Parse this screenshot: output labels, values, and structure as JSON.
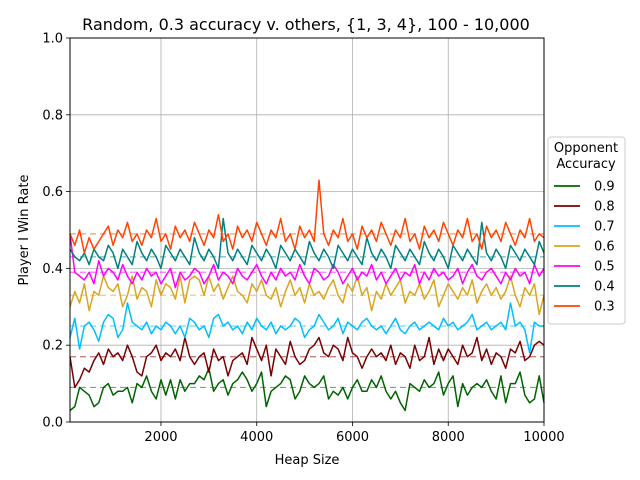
{
  "chart_data": {
    "type": "line",
    "title": "Random, 0.3 accuracy v. others, {1, 3, 4}, 100 - 10,000",
    "xlabel": "Heap Size",
    "ylabel": "Player I Win Rate",
    "xlim": [
      100,
      10000
    ],
    "ylim": [
      0,
      1
    ],
    "xticks": [
      2000,
      4000,
      6000,
      8000,
      10000
    ],
    "yticks": [
      0.0,
      0.2,
      0.4,
      0.6,
      0.8,
      1.0
    ],
    "xtick_labels": [
      "2000",
      "4000",
      "6000",
      "8000",
      "10000"
    ],
    "ytick_labels": [
      "0.0",
      "0.2",
      "0.4",
      "0.6",
      "0.8",
      "1.0"
    ],
    "grid": true,
    "legend": {
      "title_line1": "Opponent",
      "title_line2": "Accuracy",
      "placement": "outside-right"
    },
    "x": {
      "start": 100,
      "step": 100,
      "count": 100
    },
    "series": [
      {
        "name": "0.9",
        "color": "#006400",
        "mean": 0.09,
        "values": [
          0.03,
          0.04,
          0.09,
          0.08,
          0.07,
          0.04,
          0.05,
          0.09,
          0.1,
          0.07,
          0.08,
          0.08,
          0.09,
          0.05,
          0.1,
          0.09,
          0.12,
          0.08,
          0.06,
          0.11,
          0.07,
          0.11,
          0.06,
          0.11,
          0.08,
          0.1,
          0.1,
          0.12,
          0.11,
          0.14,
          0.08,
          0.1,
          0.11,
          0.07,
          0.1,
          0.11,
          0.13,
          0.11,
          0.08,
          0.1,
          0.13,
          0.04,
          0.08,
          0.09,
          0.1,
          0.12,
          0.11,
          0.06,
          0.08,
          0.12,
          0.1,
          0.09,
          0.1,
          0.12,
          0.06,
          0.08,
          0.07,
          0.09,
          0.06,
          0.09,
          0.11,
          0.08,
          0.08,
          0.11,
          0.09,
          0.12,
          0.08,
          0.06,
          0.08,
          0.05,
          0.03,
          0.1,
          0.09,
          0.08,
          0.11,
          0.09,
          0.1,
          0.13,
          0.07,
          0.1,
          0.12,
          0.04,
          0.1,
          0.07,
          0.09,
          0.1,
          0.09,
          0.11,
          0.08,
          0.06,
          0.12,
          0.05,
          0.1,
          0.1,
          0.13,
          0.07,
          0.05,
          0.06,
          0.12,
          0.05
        ],
        "_note": null
      },
      {
        "name": "0.8",
        "color": "#7b0000",
        "mean": 0.17,
        "values": [
          0.17,
          0.09,
          0.11,
          0.14,
          0.13,
          0.16,
          0.18,
          0.15,
          0.19,
          0.17,
          0.18,
          0.16,
          0.2,
          0.17,
          0.13,
          0.12,
          0.17,
          0.18,
          0.2,
          0.16,
          0.18,
          0.17,
          0.19,
          0.16,
          0.22,
          0.17,
          0.15,
          0.17,
          0.18,
          0.13,
          0.19,
          0.16,
          0.17,
          0.12,
          0.16,
          0.17,
          0.18,
          0.15,
          0.22,
          0.19,
          0.16,
          0.2,
          0.12,
          0.19,
          0.17,
          0.15,
          0.21,
          0.17,
          0.15,
          0.16,
          0.19,
          0.2,
          0.22,
          0.18,
          0.17,
          0.2,
          0.19,
          0.16,
          0.22,
          0.18,
          0.17,
          0.14,
          0.17,
          0.19,
          0.17,
          0.18,
          0.16,
          0.2,
          0.15,
          0.18,
          0.17,
          0.14,
          0.2,
          0.16,
          0.17,
          0.22,
          0.15,
          0.19,
          0.16,
          0.19,
          0.17,
          0.15,
          0.2,
          0.17,
          0.18,
          0.22,
          0.16,
          0.19,
          0.15,
          0.18,
          0.17,
          0.14,
          0.19,
          0.18,
          0.21,
          0.16,
          0.17,
          0.2,
          0.21,
          0.2
        ],
        "_note": null
      },
      {
        "name": "0.7",
        "color": "#00bfff",
        "mean": 0.25,
        "values": [
          0.22,
          0.27,
          0.19,
          0.25,
          0.26,
          0.24,
          0.21,
          0.26,
          0.28,
          0.27,
          0.22,
          0.24,
          0.31,
          0.26,
          0.25,
          0.24,
          0.26,
          0.23,
          0.25,
          0.24,
          0.26,
          0.25,
          0.23,
          0.25,
          0.22,
          0.27,
          0.26,
          0.24,
          0.25,
          0.22,
          0.27,
          0.28,
          0.25,
          0.26,
          0.24,
          0.25,
          0.23,
          0.26,
          0.24,
          0.27,
          0.25,
          0.24,
          0.26,
          0.23,
          0.25,
          0.24,
          0.25,
          0.27,
          0.26,
          0.22,
          0.24,
          0.25,
          0.28,
          0.26,
          0.24,
          0.25,
          0.27,
          0.23,
          0.26,
          0.25,
          0.24,
          0.26,
          0.27,
          0.25,
          0.24,
          0.25,
          0.23,
          0.25,
          0.27,
          0.24,
          0.23,
          0.25,
          0.26,
          0.24,
          0.25,
          0.26,
          0.25,
          0.24,
          0.27,
          0.25,
          0.26,
          0.24,
          0.25,
          0.26,
          0.28,
          0.24,
          0.25,
          0.26,
          0.24,
          0.25,
          0.26,
          0.24,
          0.31,
          0.25,
          0.26,
          0.24,
          0.18,
          0.26,
          0.25,
          0.25
        ],
        "_note": null
      },
      {
        "name": "0.6",
        "color": "#daa520",
        "mean": 0.33,
        "values": [
          0.3,
          0.34,
          0.31,
          0.36,
          0.29,
          0.34,
          0.33,
          0.38,
          0.35,
          0.34,
          0.36,
          0.3,
          0.33,
          0.38,
          0.32,
          0.35,
          0.34,
          0.3,
          0.37,
          0.33,
          0.36,
          0.35,
          0.32,
          0.38,
          0.31,
          0.37,
          0.38,
          0.37,
          0.33,
          0.38,
          0.34,
          0.36,
          0.32,
          0.35,
          0.38,
          0.34,
          0.33,
          0.31,
          0.36,
          0.34,
          0.37,
          0.33,
          0.32,
          0.35,
          0.3,
          0.34,
          0.37,
          0.33,
          0.35,
          0.31,
          0.36,
          0.33,
          0.34,
          0.32,
          0.35,
          0.37,
          0.33,
          0.31,
          0.36,
          0.34,
          0.38,
          0.33,
          0.35,
          0.29,
          0.34,
          0.32,
          0.36,
          0.33,
          0.35,
          0.37,
          0.31,
          0.34,
          0.33,
          0.36,
          0.32,
          0.34,
          0.37,
          0.3,
          0.33,
          0.36,
          0.34,
          0.32,
          0.35,
          0.33,
          0.37,
          0.31,
          0.34,
          0.36,
          0.33,
          0.35,
          0.32,
          0.34,
          0.38,
          0.33,
          0.3,
          0.35,
          0.33,
          0.36,
          0.28,
          0.33
        ],
        "_note": null
      },
      {
        "name": "0.5",
        "color": "#ff00ff",
        "mean": 0.39,
        "values": [
          0.49,
          0.39,
          0.38,
          0.37,
          0.39,
          0.36,
          0.42,
          0.38,
          0.4,
          0.39,
          0.37,
          0.41,
          0.38,
          0.36,
          0.39,
          0.37,
          0.4,
          0.38,
          0.39,
          0.36,
          0.38,
          0.4,
          0.35,
          0.39,
          0.37,
          0.38,
          0.4,
          0.39,
          0.36,
          0.38,
          0.41,
          0.37,
          0.39,
          0.38,
          0.36,
          0.4,
          0.38,
          0.37,
          0.39,
          0.41,
          0.38,
          0.36,
          0.39,
          0.37,
          0.4,
          0.38,
          0.39,
          0.37,
          0.41,
          0.38,
          0.36,
          0.4,
          0.39,
          0.37,
          0.38,
          0.41,
          0.39,
          0.36,
          0.38,
          0.4,
          0.37,
          0.39,
          0.38,
          0.41,
          0.37,
          0.39,
          0.36,
          0.38,
          0.4,
          0.37,
          0.39,
          0.38,
          0.41,
          0.36,
          0.39,
          0.37,
          0.4,
          0.38,
          0.39,
          0.37,
          0.38,
          0.4,
          0.36,
          0.39,
          0.41,
          0.38,
          0.37,
          0.39,
          0.4,
          0.38,
          0.36,
          0.39,
          0.37,
          0.4,
          0.38,
          0.39,
          0.36,
          0.41,
          0.38,
          0.4
        ],
        "_note": null
      },
      {
        "name": "0.4",
        "color": "#008080",
        "mean": 0.43,
        "values": [
          0.45,
          0.43,
          0.42,
          0.44,
          0.41,
          0.45,
          0.43,
          0.42,
          0.46,
          0.44,
          0.4,
          0.45,
          0.43,
          0.41,
          0.47,
          0.44,
          0.42,
          0.45,
          0.43,
          0.4,
          0.46,
          0.44,
          0.42,
          0.45,
          0.43,
          0.41,
          0.48,
          0.44,
          0.42,
          0.45,
          0.43,
          0.4,
          0.53,
          0.44,
          0.42,
          0.45,
          0.43,
          0.41,
          0.46,
          0.44,
          0.42,
          0.45,
          0.43,
          0.4,
          0.46,
          0.44,
          0.42,
          0.45,
          0.43,
          0.41,
          0.47,
          0.44,
          0.42,
          0.45,
          0.43,
          0.4,
          0.46,
          0.44,
          0.42,
          0.45,
          0.43,
          0.41,
          0.48,
          0.44,
          0.42,
          0.45,
          0.43,
          0.4,
          0.46,
          0.44,
          0.42,
          0.45,
          0.43,
          0.41,
          0.47,
          0.44,
          0.42,
          0.45,
          0.43,
          0.4,
          0.46,
          0.44,
          0.42,
          0.45,
          0.43,
          0.41,
          0.52,
          0.44,
          0.42,
          0.45,
          0.43,
          0.4,
          0.46,
          0.44,
          0.42,
          0.45,
          0.43,
          0.41,
          0.47,
          0.44
        ],
        "_note": null
      },
      {
        "name": "0.3",
        "color": "#ff4500",
        "mean": 0.49,
        "values": [
          0.49,
          0.46,
          0.5,
          0.44,
          0.48,
          0.45,
          0.47,
          0.49,
          0.51,
          0.46,
          0.5,
          0.48,
          0.52,
          0.47,
          0.49,
          0.46,
          0.5,
          0.48,
          0.53,
          0.47,
          0.49,
          0.45,
          0.51,
          0.48,
          0.5,
          0.47,
          0.52,
          0.49,
          0.46,
          0.5,
          0.48,
          0.54,
          0.47,
          0.49,
          0.45,
          0.51,
          0.48,
          0.5,
          0.47,
          0.52,
          0.49,
          0.46,
          0.5,
          0.48,
          0.53,
          0.47,
          0.49,
          0.45,
          0.51,
          0.48,
          0.5,
          0.47,
          0.63,
          0.49,
          0.46,
          0.5,
          0.48,
          0.53,
          0.47,
          0.49,
          0.45,
          0.51,
          0.48,
          0.5,
          0.47,
          0.52,
          0.49,
          0.46,
          0.5,
          0.48,
          0.53,
          0.47,
          0.49,
          0.45,
          0.51,
          0.48,
          0.5,
          0.47,
          0.52,
          0.49,
          0.46,
          0.5,
          0.48,
          0.53,
          0.47,
          0.49,
          0.45,
          0.51,
          0.48,
          0.5,
          0.47,
          0.52,
          0.49,
          0.46,
          0.5,
          0.48,
          0.53,
          0.47,
          0.49,
          0.48
        ],
        "_note": null
      }
    ]
  }
}
